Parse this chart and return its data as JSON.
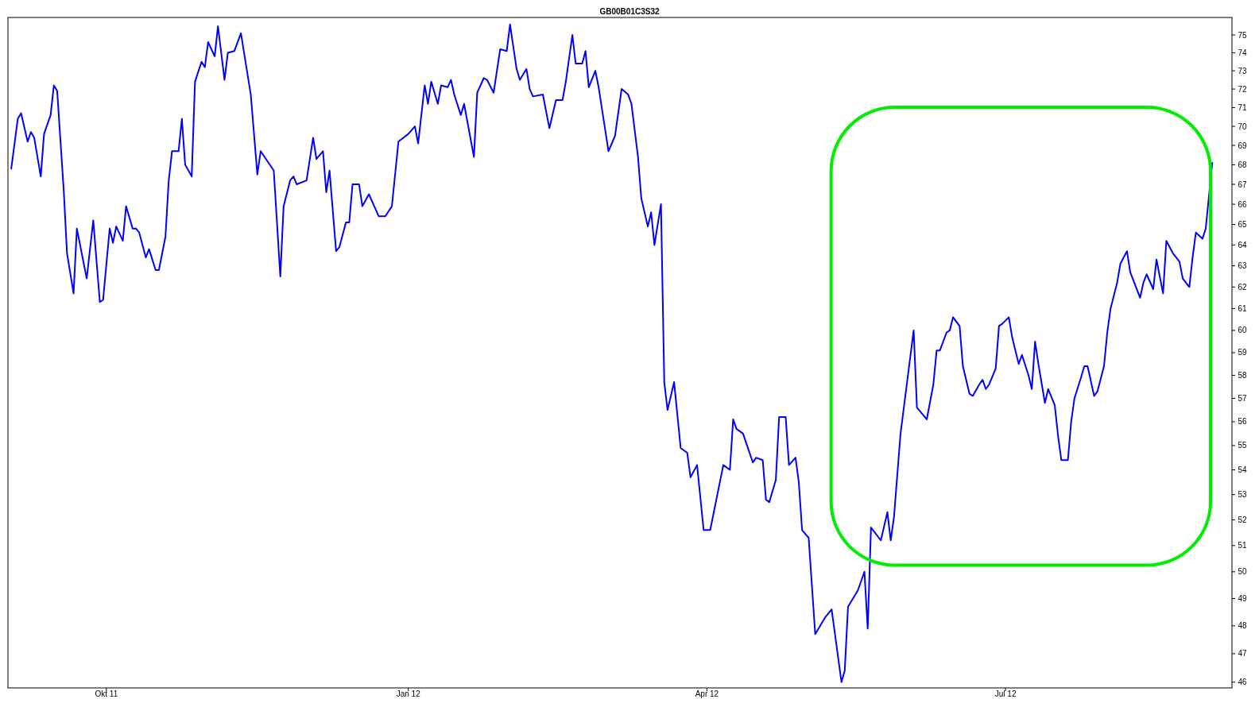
{
  "chart_data": {
    "type": "line",
    "title": "GB00B01C3S32",
    "log": true,
    "grid": false,
    "marker": "none",
    "line_style": "solid",
    "xlim": [
      "2011-09-01",
      "2012-09-08"
    ],
    "xticks": [
      {
        "value": "2011-10-01",
        "label": "Okt 11"
      },
      {
        "value": "2012-01-01",
        "label": "Jan 12"
      },
      {
        "value": "2012-04-01",
        "label": "Apr 12"
      },
      {
        "value": "2012-07-01",
        "label": "Jul 12"
      }
    ],
    "ylim": [
      45.8,
      76
    ],
    "yticks": [
      46,
      47,
      48,
      49,
      50,
      51,
      52,
      53,
      54,
      55,
      56,
      57,
      58,
      59,
      60,
      61,
      62,
      63,
      64,
      65,
      66,
      67,
      68,
      69,
      70,
      71,
      72,
      73,
      74,
      75
    ],
    "x": [
      "2011-09-02",
      "2011-09-04",
      "2011-09-05",
      "2011-09-07",
      "2011-09-08",
      "2011-09-09",
      "2011-09-11",
      "2011-09-12",
      "2011-09-14",
      "2011-09-15",
      "2011-09-16",
      "2011-09-18",
      "2011-09-19",
      "2011-09-21",
      "2011-09-22",
      "2011-09-25",
      "2011-09-27",
      "2011-09-29",
      "2011-09-30",
      "2011-10-02",
      "2011-10-03",
      "2011-10-04",
      "2011-10-06",
      "2011-10-07",
      "2011-10-09",
      "2011-10-10",
      "2011-10-11",
      "2011-10-13",
      "2011-10-14",
      "2011-10-16",
      "2011-10-17",
      "2011-10-19",
      "2011-10-20",
      "2011-10-21",
      "2011-10-23",
      "2011-10-24",
      "2011-10-25",
      "2011-10-27",
      "2011-10-28",
      "2011-10-30",
      "2011-10-31",
      "2011-11-01",
      "2011-11-03",
      "2011-11-04",
      "2011-11-06",
      "2011-11-07",
      "2011-11-09",
      "2011-11-11",
      "2011-11-14",
      "2011-11-16",
      "2011-11-17",
      "2011-11-19",
      "2011-11-21",
      "2011-11-23",
      "2011-11-24",
      "2011-11-26",
      "2011-11-27",
      "2011-11-28",
      "2011-12-01",
      "2011-12-03",
      "2011-12-04",
      "2011-12-06",
      "2011-12-07",
      "2011-12-08",
      "2011-12-10",
      "2011-12-11",
      "2011-12-13",
      "2011-12-14",
      "2011-12-15",
      "2011-12-17",
      "2011-12-18",
      "2011-12-20",
      "2011-12-23",
      "2011-12-25",
      "2011-12-27",
      "2011-12-29",
      "2012-01-01",
      "2012-01-03",
      "2012-01-04",
      "2012-01-06",
      "2012-01-07",
      "2012-01-08",
      "2012-01-10",
      "2012-01-11",
      "2012-01-13",
      "2012-01-14",
      "2012-01-15",
      "2012-01-17",
      "2012-01-18",
      "2012-01-21",
      "2012-01-22",
      "2012-01-24",
      "2012-01-25",
      "2012-01-27",
      "2012-01-29",
      "2012-01-31",
      "2012-02-01",
      "2012-02-03",
      "2012-02-04",
      "2012-02-06",
      "2012-02-07",
      "2012-02-08",
      "2012-02-11",
      "2012-02-13",
      "2012-02-15",
      "2012-02-17",
      "2012-02-18",
      "2012-02-20",
      "2012-02-21",
      "2012-02-23",
      "2012-02-24",
      "2012-02-25",
      "2012-02-27",
      "2012-02-28",
      "2012-03-02",
      "2012-03-04",
      "2012-03-06",
      "2012-03-08",
      "2012-03-09",
      "2012-03-11",
      "2012-03-12",
      "2012-03-14",
      "2012-03-15",
      "2012-03-16",
      "2012-03-18",
      "2012-03-19",
      "2012-03-20",
      "2012-03-22",
      "2012-03-24",
      "2012-03-26",
      "2012-03-27",
      "2012-03-29",
      "2012-03-31",
      "2012-04-02",
      "2012-04-06",
      "2012-04-08",
      "2012-04-09",
      "2012-04-10",
      "2012-04-12",
      "2012-04-15",
      "2012-04-16",
      "2012-04-18",
      "2012-04-19",
      "2012-04-20",
      "2012-04-22",
      "2012-04-23",
      "2012-04-25",
      "2012-04-26",
      "2012-04-28",
      "2012-04-29",
      "2012-04-30",
      "2012-05-02",
      "2012-05-04",
      "2012-05-07",
      "2012-05-09",
      "2012-05-12",
      "2012-05-13",
      "2012-05-14",
      "2012-05-17",
      "2012-05-19",
      "2012-05-20",
      "2012-05-21",
      "2012-05-24",
      "2012-05-26",
      "2012-05-27",
      "2012-05-28",
      "2012-05-30",
      "2012-06-03",
      "2012-06-04",
      "2012-06-07",
      "2012-06-09",
      "2012-06-10",
      "2012-06-11",
      "2012-06-13",
      "2012-06-14",
      "2012-06-15",
      "2012-06-17",
      "2012-06-18",
      "2012-06-20",
      "2012-06-21",
      "2012-06-23",
      "2012-06-24",
      "2012-06-25",
      "2012-06-26",
      "2012-06-28",
      "2012-06-29",
      "2012-06-30",
      "2012-07-02",
      "2012-07-03",
      "2012-07-05",
      "2012-07-06",
      "2012-07-08",
      "2012-07-09",
      "2012-07-10",
      "2012-07-11",
      "2012-07-13",
      "2012-07-14",
      "2012-07-16",
      "2012-07-17",
      "2012-07-18",
      "2012-07-20",
      "2012-07-21",
      "2012-07-22",
      "2012-07-24",
      "2012-07-25",
      "2012-07-26",
      "2012-07-28",
      "2012-07-29",
      "2012-07-31",
      "2012-08-01",
      "2012-08-02",
      "2012-08-04",
      "2012-08-05",
      "2012-08-07",
      "2012-08-08",
      "2012-08-11",
      "2012-08-12",
      "2012-08-13",
      "2012-08-15",
      "2012-08-16",
      "2012-08-18",
      "2012-08-19",
      "2012-08-21",
      "2012-08-23",
      "2012-08-24",
      "2012-08-26",
      "2012-08-27",
      "2012-08-28",
      "2012-08-30",
      "2012-08-31",
      "2012-09-02"
    ],
    "series": [
      {
        "color": "#0000ff",
        "values": [
          67.8,
          70.4,
          70.7,
          69.2,
          69.7,
          69.4,
          67.4,
          69.6,
          70.6,
          72.2,
          71.9,
          66.7,
          63.6,
          61.7,
          64.8,
          62.4,
          65.2,
          61.3,
          61.4,
          64.8,
          64.1,
          64.9,
          64.2,
          65.9,
          64.8,
          64.8,
          64.6,
          63.4,
          63.8,
          62.8,
          62.8,
          64.4,
          67.2,
          68.7,
          68.7,
          70.4,
          68.0,
          67.4,
          72.4,
          73.5,
          73.2,
          74.6,
          73.8,
          75.5,
          72.5,
          74.0,
          74.1,
          75.1,
          71.7,
          67.5,
          68.7,
          68.2,
          67.7,
          62.5,
          65.9,
          67.2,
          67.4,
          67.0,
          67.2,
          69.4,
          68.3,
          68.7,
          66.6,
          67.7,
          63.7,
          63.9,
          65.1,
          65.1,
          67.0,
          67.0,
          65.9,
          66.5,
          65.4,
          65.4,
          65.9,
          69.2,
          69.6,
          70.0,
          69.1,
          72.2,
          71.2,
          72.4,
          71.2,
          72.2,
          72.1,
          72.5,
          71.7,
          70.6,
          71.2,
          68.4,
          71.8,
          72.6,
          72.5,
          71.8,
          74.2,
          74.1,
          75.6,
          73.1,
          72.5,
          73.1,
          72.0,
          71.6,
          71.7,
          69.9,
          71.4,
          71.4,
          72.4,
          75.0,
          73.4,
          73.4,
          74.1,
          72.1,
          73.0,
          72.1,
          68.7,
          69.5,
          72.0,
          71.7,
          71.2,
          68.4,
          66.3,
          64.9,
          65.6,
          64.0,
          66.0,
          57.7,
          56.5,
          57.7,
          54.9,
          54.7,
          53.7,
          54.2,
          51.6,
          51.6,
          54.2,
          54.0,
          56.1,
          55.7,
          55.5,
          54.3,
          54.5,
          54.4,
          52.8,
          52.7,
          53.6,
          56.2,
          56.2,
          54.2,
          54.5,
          53.5,
          51.6,
          51.3,
          47.7,
          48.3,
          48.6,
          46.0,
          46.4,
          48.7,
          49.3,
          50.0,
          47.9,
          51.7,
          51.2,
          52.3,
          51.2,
          52.1,
          55.5,
          60.0,
          56.6,
          56.1,
          57.6,
          59.1,
          59.1,
          59.9,
          60.0,
          60.6,
          60.2,
          58.4,
          57.2,
          57.1,
          57.6,
          57.8,
          57.4,
          57.6,
          58.3,
          60.2,
          60.3,
          60.6,
          59.7,
          58.5,
          58.9,
          58.0,
          57.4,
          59.5,
          58.5,
          56.8,
          57.4,
          56.7,
          55.4,
          54.4,
          54.4,
          56.0,
          57.0,
          57.9,
          58.4,
          58.4,
          57.1,
          57.3,
          58.4,
          59.9,
          61.0,
          62.2,
          63.1,
          63.7,
          62.7,
          61.5,
          62.2,
          62.6,
          61.9,
          63.3,
          61.7,
          64.2,
          63.6,
          63.2,
          62.4,
          62.0,
          63.4,
          64.6,
          64.3,
          64.8,
          68.1
        ]
      }
    ]
  }
}
